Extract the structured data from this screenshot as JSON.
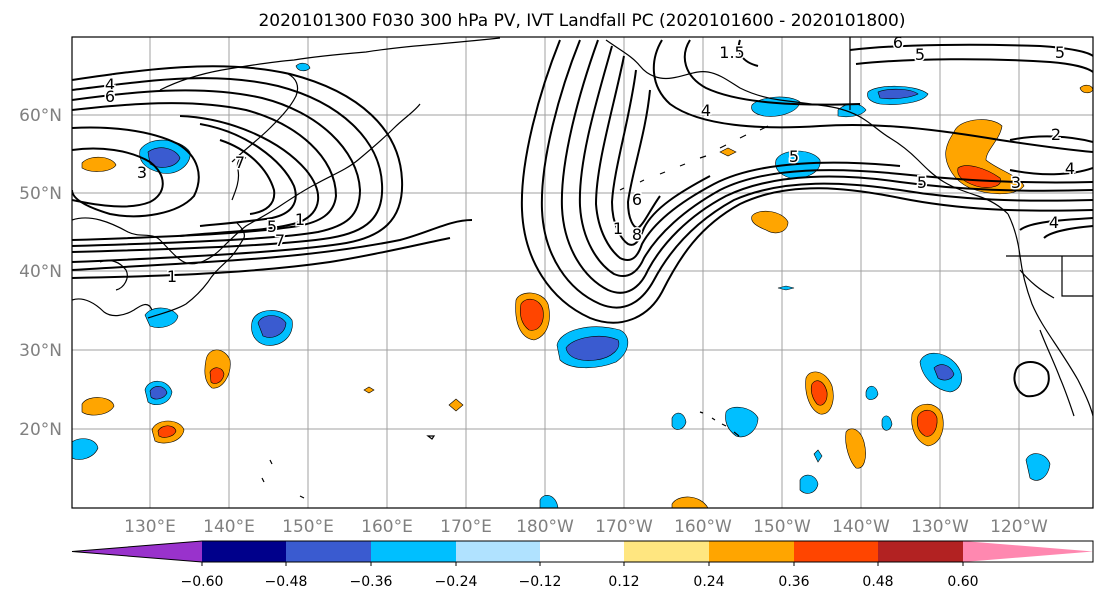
{
  "title": "2020101300 F030 300 hPa PV, IVT Landfall PC (2020101600 - 2020101800)",
  "map": {
    "lon_ticks": [
      "130°E",
      "140°E",
      "150°E",
      "160°E",
      "170°E",
      "180°W",
      "170°W",
      "160°W",
      "150°W",
      "140°W",
      "130°W",
      "120°W"
    ],
    "lat_ticks": [
      "60°N",
      "50°N",
      "40°N",
      "30°N",
      "20°N"
    ],
    "contour_labels": [
      "4",
      "6",
      "3",
      "5",
      "7",
      "1",
      "1.5",
      "4",
      "5",
      "6",
      "8",
      "5",
      "6",
      "5",
      "2",
      "4",
      "3",
      "5",
      "4",
      "1",
      "1",
      "7"
    ],
    "colors": {
      "land_outline": "#000000",
      "grid": "#a0a0a0",
      "tick_label": "#808080"
    }
  },
  "colorbar": {
    "ticks": [
      "−0.60",
      "−0.48",
      "−0.36",
      "−0.24",
      "−0.12",
      "0.12",
      "0.24",
      "0.36",
      "0.48",
      "0.60"
    ],
    "colors": [
      "#9932cc",
      "#00008b",
      "#3a5bd0",
      "#00bfff",
      "#b0e2ff",
      "#ffffff",
      "#ffe680",
      "#ffa500",
      "#ff4500",
      "#b22222",
      "#ff88b0"
    ],
    "extend": "both"
  }
}
